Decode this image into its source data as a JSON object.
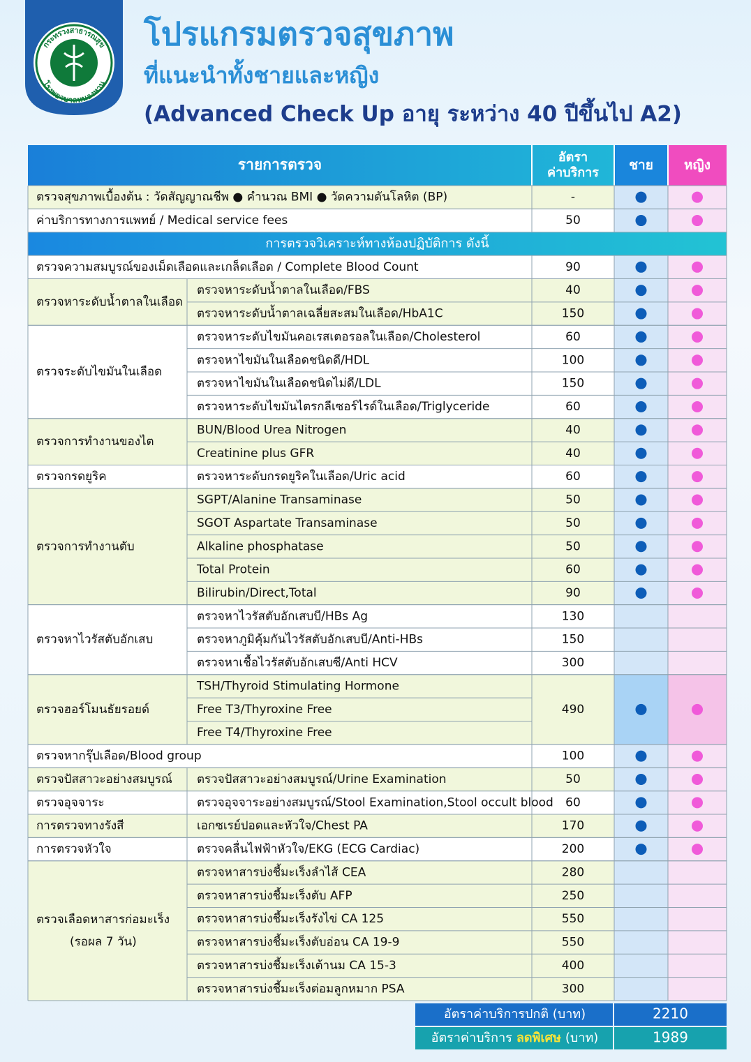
{
  "header": {
    "logo_top": "กระทรวงสาธารณสุข",
    "logo_bottom": "โรงพยาบาลหนองหาน",
    "title": "โปรแกรมตรวจสุขภาพ",
    "subtitle": "ที่แนะนำทั้งชายและหญิง",
    "program": "(Advanced Check Up อายุ ระหว่าง 40 ปีขึ้นไป A2)"
  },
  "table": {
    "columns": {
      "item": "รายการตรวจ",
      "price": [
        "อัตรา",
        "ค่าบริการ"
      ],
      "male": "ชาย",
      "female": "หญิง"
    },
    "rows": [
      {
        "item": "ตรวจสุขภาพเบื้องต้น : วัดสัญญาณชีพ ● คำนวณ BMI ● วัดความดันโลหิต (BP)",
        "price": "-",
        "male": true,
        "female": true
      },
      {
        "item": "ค่าบริการทางการแพทย์ / Medical service fees",
        "price": 50,
        "male": true,
        "female": true
      },
      {
        "section": "การตรวจวิเคราะห์ทางห้องปฏิบัติการ ดังนี้"
      },
      {
        "item": "ตรวจความสมบูรณ์ของเม็ดเลือดและเกล็ดเลือด / Complete Blood Count",
        "price": 90,
        "male": true,
        "female": true
      },
      {
        "group": [
          "ตรวจหาระดับน้ำตาลในเลือด"
        ],
        "male": true,
        "female": true,
        "items": [
          {
            "name": "ตรวจหาระดับน้ำตาลในเลือด/FBS",
            "price": 40
          },
          {
            "name": "ตรวจหาระดับน้ำตาลเฉลี่ยสะสมในเลือด/HbA1C",
            "price": 150
          }
        ]
      },
      {
        "group": [
          "ตรวจระดับไขมันในเลือด"
        ],
        "male": true,
        "female": true,
        "items": [
          {
            "name": "ตรวจหาระดับไขมันคอเรสเตอรอลในเลือด/Cholesterol",
            "price": 60
          },
          {
            "name": "ตรวจหาไขมันในเลือดชนิดดี/HDL",
            "price": 100
          },
          {
            "name": "ตรวจหาไขมันในเลือดชนิดไม่ดี/LDL",
            "price": 150
          },
          {
            "name": "ตรวจหาระดับไขมันไตรกลีเซอร์ไรด์ในเลือด/Triglyceride",
            "price": 60
          }
        ]
      },
      {
        "group": [
          "ตรวจการทำงานของไต"
        ],
        "male": true,
        "female": true,
        "items": [
          {
            "name": "BUN/Blood Urea Nitrogen",
            "price": 40
          },
          {
            "name": "Creatinine plus GFR",
            "price": 40
          }
        ]
      },
      {
        "group": [
          "ตรวจกรดยูริค"
        ],
        "male": true,
        "female": true,
        "items": [
          {
            "name": "ตรวจหาระดับกรดยูริคในเลือด/Uric acid",
            "price": 60
          }
        ]
      },
      {
        "group": [
          "ตรวจการทำงานตับ"
        ],
        "male": true,
        "female": true,
        "items": [
          {
            "name": "SGPT/Alanine Transaminase",
            "price": 50
          },
          {
            "name": "SGOT Aspartate Transaminase",
            "price": 50
          },
          {
            "name": "Alkaline phosphatase",
            "price": 50
          },
          {
            "name": "Total Protein",
            "price": 60
          },
          {
            "name": "Bilirubin/Direct,Total",
            "price": 90
          }
        ]
      },
      {
        "group": [
          "ตรวจหาไวรัสตับอักเสบ"
        ],
        "male": false,
        "female": false,
        "items": [
          {
            "name": "ตรวจหาไวรัสตับอักเสบบี/HBs Ag",
            "price": 130
          },
          {
            "name": "ตรวจหาภูมิคุ้มกันไวรัสตับอักเสบบี/Anti-HBs",
            "price": 150
          },
          {
            "name": "ตรวจหาเชื้อไวรัสตับอักเสบซี/Anti HCV",
            "price": 300
          }
        ]
      },
      {
        "group": [
          "ตรวจฮอร์โมนธัยรอยด์"
        ],
        "male": true,
        "female": true,
        "price": 490,
        "items": [
          {
            "name": "TSH/Thyroid Stimulating Hormone"
          },
          {
            "name": "Free T3/Thyroxine Free"
          },
          {
            "name": "Free T4/Thyroxine Free"
          }
        ]
      },
      {
        "item": "ตรวจหากรุ๊ปเลือด/Blood group",
        "price": 100,
        "male": true,
        "female": true
      },
      {
        "group": [
          "ตรวจปัสสาวะอย่างสมบูรณ์"
        ],
        "male": true,
        "female": true,
        "items": [
          {
            "name": "ตรวจปัสสาวะอย่างสมบูรณ์/Urine Examination",
            "price": 50
          }
        ]
      },
      {
        "group": [
          "ตรวจอุจจาระ"
        ],
        "male": true,
        "female": true,
        "items": [
          {
            "name": "ตรวจอุจจาระอย่างสมบูรณ์/Stool Examination,Stool occult blood",
            "price": 60
          }
        ]
      },
      {
        "group": [
          "การตรวจทางรังสี"
        ],
        "male": true,
        "female": true,
        "items": [
          {
            "name": "เอกซเรย์ปอดและหัวใจ/Chest PA",
            "price": 170
          }
        ]
      },
      {
        "group": [
          "การตรวจหัวใจ"
        ],
        "male": true,
        "female": true,
        "items": [
          {
            "name": "ตรวจคลื่นไฟฟ้าหัวใจ/EKG (ECG Cardiac)",
            "price": 200
          }
        ]
      },
      {
        "group": [
          "ตรวจเลือดหาสารก่อมะเร็ง",
          "(รอผล 7 วัน)"
        ],
        "male": false,
        "female": false,
        "items": [
          {
            "name": "ตรวจหาสารบ่งชี้มะเร็งลำไส้ CEA",
            "price": 280
          },
          {
            "name": "ตรวจหาสารบ่งชี้มะเร็งตับ AFP",
            "price": 250
          },
          {
            "name": "ตรวจหาสารบ่งชี้มะเร็งรังไข่ CA 125",
            "price": 550
          },
          {
            "name": "ตรวจหาสารบ่งชี้มะเร็งตับอ่อน CA 19-9",
            "price": 550
          },
          {
            "name": "ตรวจหาสารบ่งชี้มะเร็งเต้านม CA 15-3",
            "price": 400
          },
          {
            "name": "ตรวจหาสารบ่งชี้มะเร็งต่อมลูกหมาก PSA",
            "price": 300
          }
        ]
      }
    ],
    "totals": [
      {
        "label": [
          "อัตราค่าบริการปกติ (บาท)"
        ],
        "value": 2210
      },
      {
        "label": [
          "อัตราค่าบริการ",
          "ลดพิเศษ",
          "(บาท)"
        ],
        "value": 1989
      }
    ]
  }
}
